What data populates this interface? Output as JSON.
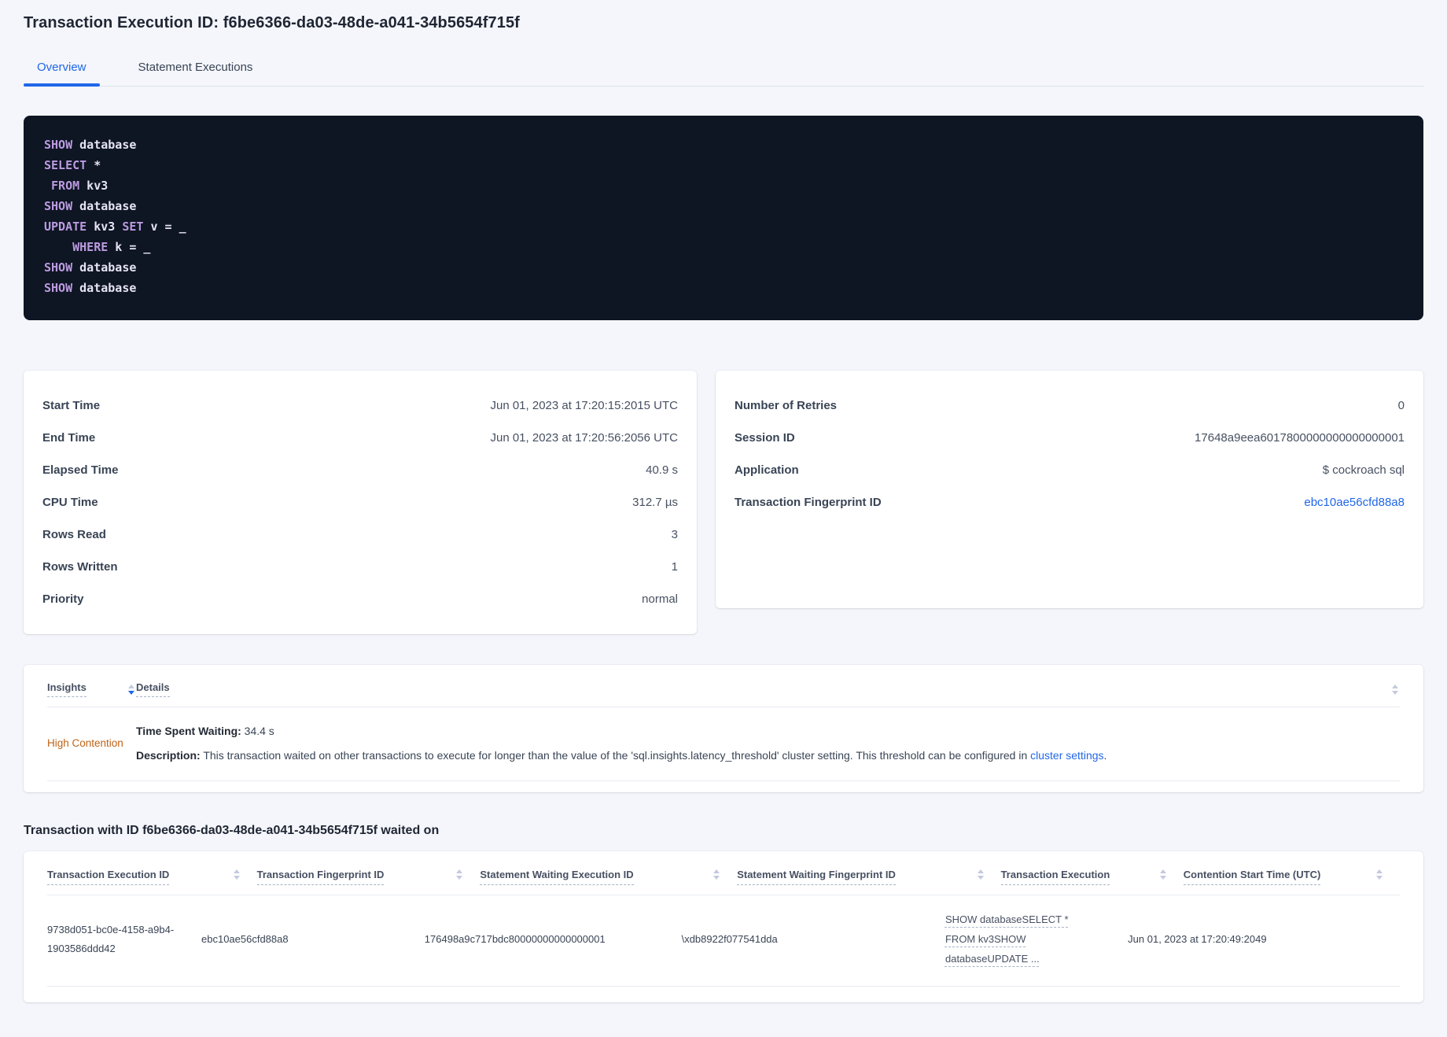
{
  "colors": {
    "accent_blue": "#2166e8",
    "insight_warning_orange": "#bf6318",
    "code_background": "#0e1523",
    "code_keyword_purple": "#bb9be0",
    "page_background": "#f4f6fb"
  },
  "header": {
    "title": "Transaction Execution ID: f6be6366-da03-48de-a041-34b5654f715f"
  },
  "tabs": [
    {
      "label": "Overview",
      "active": true
    },
    {
      "label": "Statement Executions",
      "active": false
    }
  ],
  "sql": {
    "lines": [
      {
        "t0": "SHOW",
        "t1": " database"
      },
      {
        "t0": "SELECT",
        "t1": " *"
      },
      {
        "t0": " FROM",
        "t1": " kv3"
      },
      {
        "t0": "SHOW",
        "t1": " database"
      },
      {
        "t0": "UPDATE",
        "t1": " kv3 ",
        "t2": "SET",
        "t3": " v = _"
      },
      {
        "t0": "    WHERE",
        "t1": " k = _"
      },
      {
        "t0": "SHOW",
        "t1": " database"
      },
      {
        "t0": "SHOW",
        "t1": " database"
      }
    ]
  },
  "summary_left": {
    "rows": [
      {
        "label": "Start Time",
        "value": "Jun 01, 2023 at 17:20:15:2015 UTC"
      },
      {
        "label": "End Time",
        "value": "Jun 01, 2023 at 17:20:56:2056 UTC"
      },
      {
        "label": "Elapsed Time",
        "value": "40.9 s"
      },
      {
        "label": "CPU Time",
        "value": "312.7 µs"
      },
      {
        "label": "Rows Read",
        "value": "3"
      },
      {
        "label": "Rows Written",
        "value": "1"
      },
      {
        "label": "Priority",
        "value": "normal"
      }
    ]
  },
  "summary_right": {
    "rows": [
      {
        "label": "Number of Retries",
        "value": "0"
      },
      {
        "label": "Session ID",
        "value": "17648a9eea6017800000000000000001"
      },
      {
        "label": "Application",
        "value": "$ cockroach sql"
      },
      {
        "label": "Transaction Fingerprint ID",
        "value": "ebc10ae56cfd88a8"
      }
    ]
  },
  "insights": {
    "columns": {
      "insight": "Insights",
      "details": "Details"
    },
    "row": {
      "insight": "High Contention",
      "waiting_label": "Time Spent Waiting:",
      "waiting_value": " 34.4 s",
      "description_label": "Description:",
      "description_text": " This transaction waited on other transactions to execute for longer than the value of the 'sql.insights.latency_threshold' cluster setting. This threshold can be configured in ",
      "description_link": "cluster settings",
      "description_suffix": "."
    }
  },
  "waited": {
    "heading": "Transaction with ID f6be6366-da03-48de-a041-34b5654f715f waited on",
    "columns": [
      "Transaction Execution ID",
      "Transaction Fingerprint ID",
      "Statement Waiting Execution ID",
      "Statement Waiting Fingerprint ID",
      "Transaction Execution",
      "Contention Start Time (UTC)"
    ],
    "row": {
      "transaction_execution_id": "9738d051-bc0e-4158-a9b4-1903586ddd42",
      "transaction_fingerprint_id": "ebc10ae56cfd88a8",
      "statement_waiting_execution_id": "176498a9c717bdc80000000000000001",
      "statement_waiting_fingerprint_id": "\\xdb8922f077541dda",
      "transaction_execution": "SHOW databaseSELECT * FROM kv3SHOW databaseUPDATE ...",
      "contention_start_time": "Jun 01, 2023 at 17:20:49:2049"
    }
  }
}
